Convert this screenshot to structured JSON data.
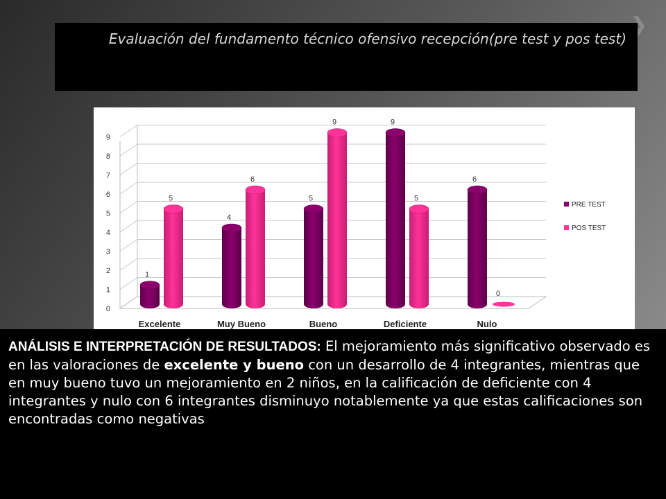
{
  "slide": {
    "title": "Evaluación del fundamento técnico ofensivo recepción(pre test y pos test)",
    "analysis": {
      "lead": "ANÁLISIS E INTERPRETACIÓN DE RESULTADOS:",
      "part1": " El mejoramiento más significativo observado es en las valoraciones de ",
      "emphasis": "excelente y bueno",
      "part2": " con un desarrollo de 4 integrantes, mientras que en muy bueno tuvo un mejoramiento en 2 niños, en la calificación de  deficiente con 4 integrantes y nulo con 6 integrantes disminuyo notablemente ya que estas calificaciones son encontradas como negativas"
    }
  },
  "colors": {
    "pre_test": "#8c006e",
    "pos_test": "#ff3399",
    "background": "#000000"
  },
  "chart_data": {
    "type": "bar",
    "categories": [
      "Excelente",
      "Muy Bueno",
      "Bueno",
      "Deficiente",
      "Nulo"
    ],
    "series": [
      {
        "name": "PRE TEST",
        "values": [
          1,
          4,
          5,
          9,
          6
        ]
      },
      {
        "name": "POS TEST",
        "values": [
          5,
          6,
          9,
          5,
          0
        ]
      }
    ],
    "yticks": [
      0,
      1,
      2,
      3,
      4,
      5,
      6,
      7,
      8,
      9
    ],
    "ylim": [
      0,
      9
    ],
    "legend": "right",
    "data_labels": true
  }
}
